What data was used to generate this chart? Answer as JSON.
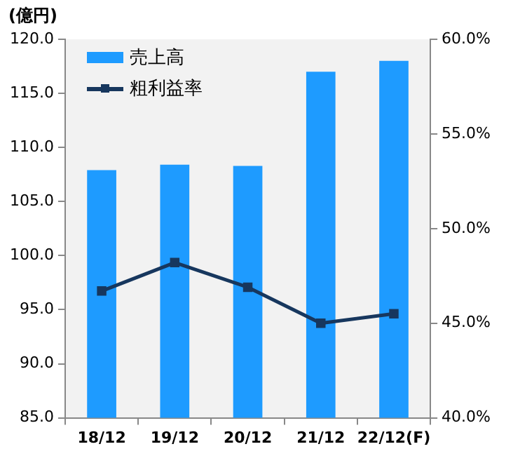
{
  "chart_data": {
    "type": "bar",
    "ylabel": "(億円)",
    "categories": [
      "18/12",
      "19/12",
      "20/12",
      "21/12",
      "22/12(F)"
    ],
    "series": [
      {
        "name": "売上高",
        "color": "#1e9bff",
        "values": [
          107.9,
          108.4,
          108.3,
          117.0,
          118.0
        ]
      },
      {
        "name": "粗利益率",
        "type": "line",
        "axis": "y2",
        "color": "#17375e",
        "values": [
          46.7,
          48.2,
          46.9,
          45.0,
          45.5
        ]
      }
    ],
    "ylim": [
      85,
      120
    ],
    "yticks": [
      {
        "value": 85,
        "label": "85.0"
      },
      {
        "value": 90,
        "label": "90.0"
      },
      {
        "value": 95,
        "label": "95.0"
      },
      {
        "value": 100,
        "label": "100.0"
      },
      {
        "value": 105,
        "label": "105.0"
      },
      {
        "value": 110,
        "label": "110.0"
      },
      {
        "value": 115,
        "label": "115.0"
      },
      {
        "value": 120,
        "label": "120.0"
      }
    ],
    "y2lim": [
      40,
      60
    ],
    "y2ticks": [
      {
        "value": 40,
        "label": "40.0%"
      },
      {
        "value": 45,
        "label": "45.0%"
      },
      {
        "value": 50,
        "label": "50.0%"
      },
      {
        "value": 55,
        "label": "55.0%"
      },
      {
        "value": 60,
        "label": "60.0%"
      }
    ],
    "grid": false,
    "legend": "top left",
    "marker": "square",
    "line_style": "solid"
  }
}
